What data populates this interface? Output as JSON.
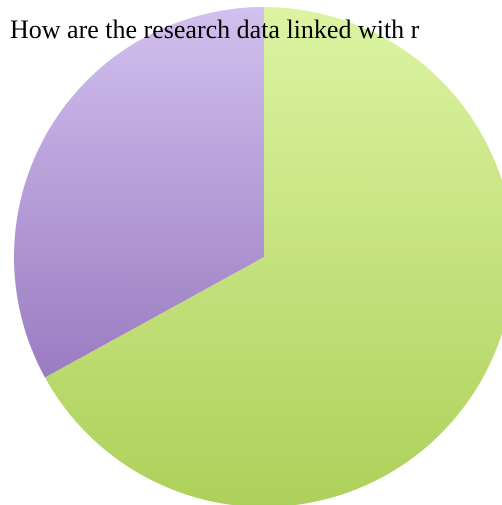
{
  "chart_data": {
    "type": "pie",
    "title": "How are the research data linked with r",
    "slices": [
      {
        "value": 67,
        "color_top": "#dcf4a2",
        "color_bottom": "#aed05a"
      },
      {
        "value": 33,
        "color_top": "#d2c0ee",
        "color_bottom": "#9a7cc2"
      }
    ],
    "start_angle_deg": 0,
    "direction": "clockwise",
    "legend": "none"
  }
}
